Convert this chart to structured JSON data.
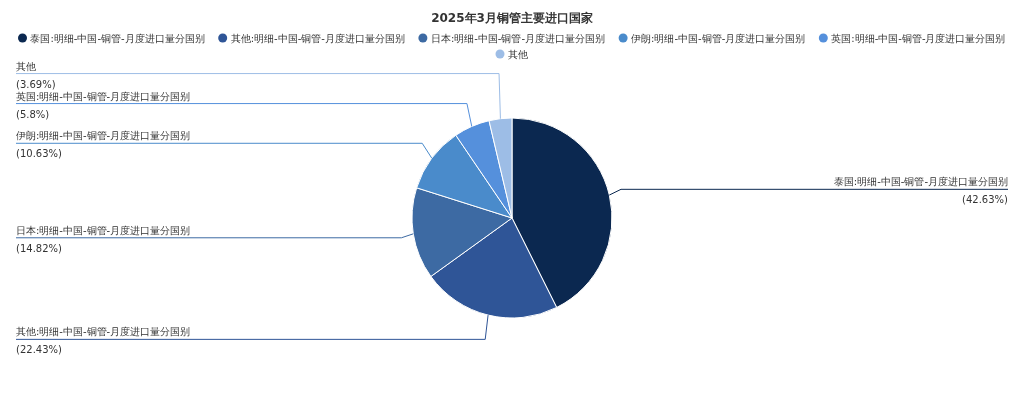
{
  "chart_data": {
    "type": "pie",
    "title": "2025年3月铜管主要进口国家",
    "categories": [
      "泰国:明细-中国-铜管-月度进口量分国别",
      "其他:明细-中国-铜管-月度进口量分国别",
      "日本:明细-中国-铜管-月度进口量分国别",
      "伊朗:明细-中国-铜管-月度进口量分国别",
      "英国:明细-中国-铜管-月度进口量分国别",
      "其他"
    ],
    "values": [
      42.63,
      22.43,
      14.82,
      10.63,
      5.8,
      3.69
    ],
    "colors": [
      "#0b2850",
      "#2f5597",
      "#3d6aa3",
      "#4a8bcb",
      "#5590dc",
      "#9dbde6"
    ],
    "value_labels": [
      "(42.63%)",
      "(22.43%)",
      "(14.82%)",
      "(10.63%)",
      "(5.8%)",
      "(3.69%)"
    ],
    "legend": "top"
  }
}
